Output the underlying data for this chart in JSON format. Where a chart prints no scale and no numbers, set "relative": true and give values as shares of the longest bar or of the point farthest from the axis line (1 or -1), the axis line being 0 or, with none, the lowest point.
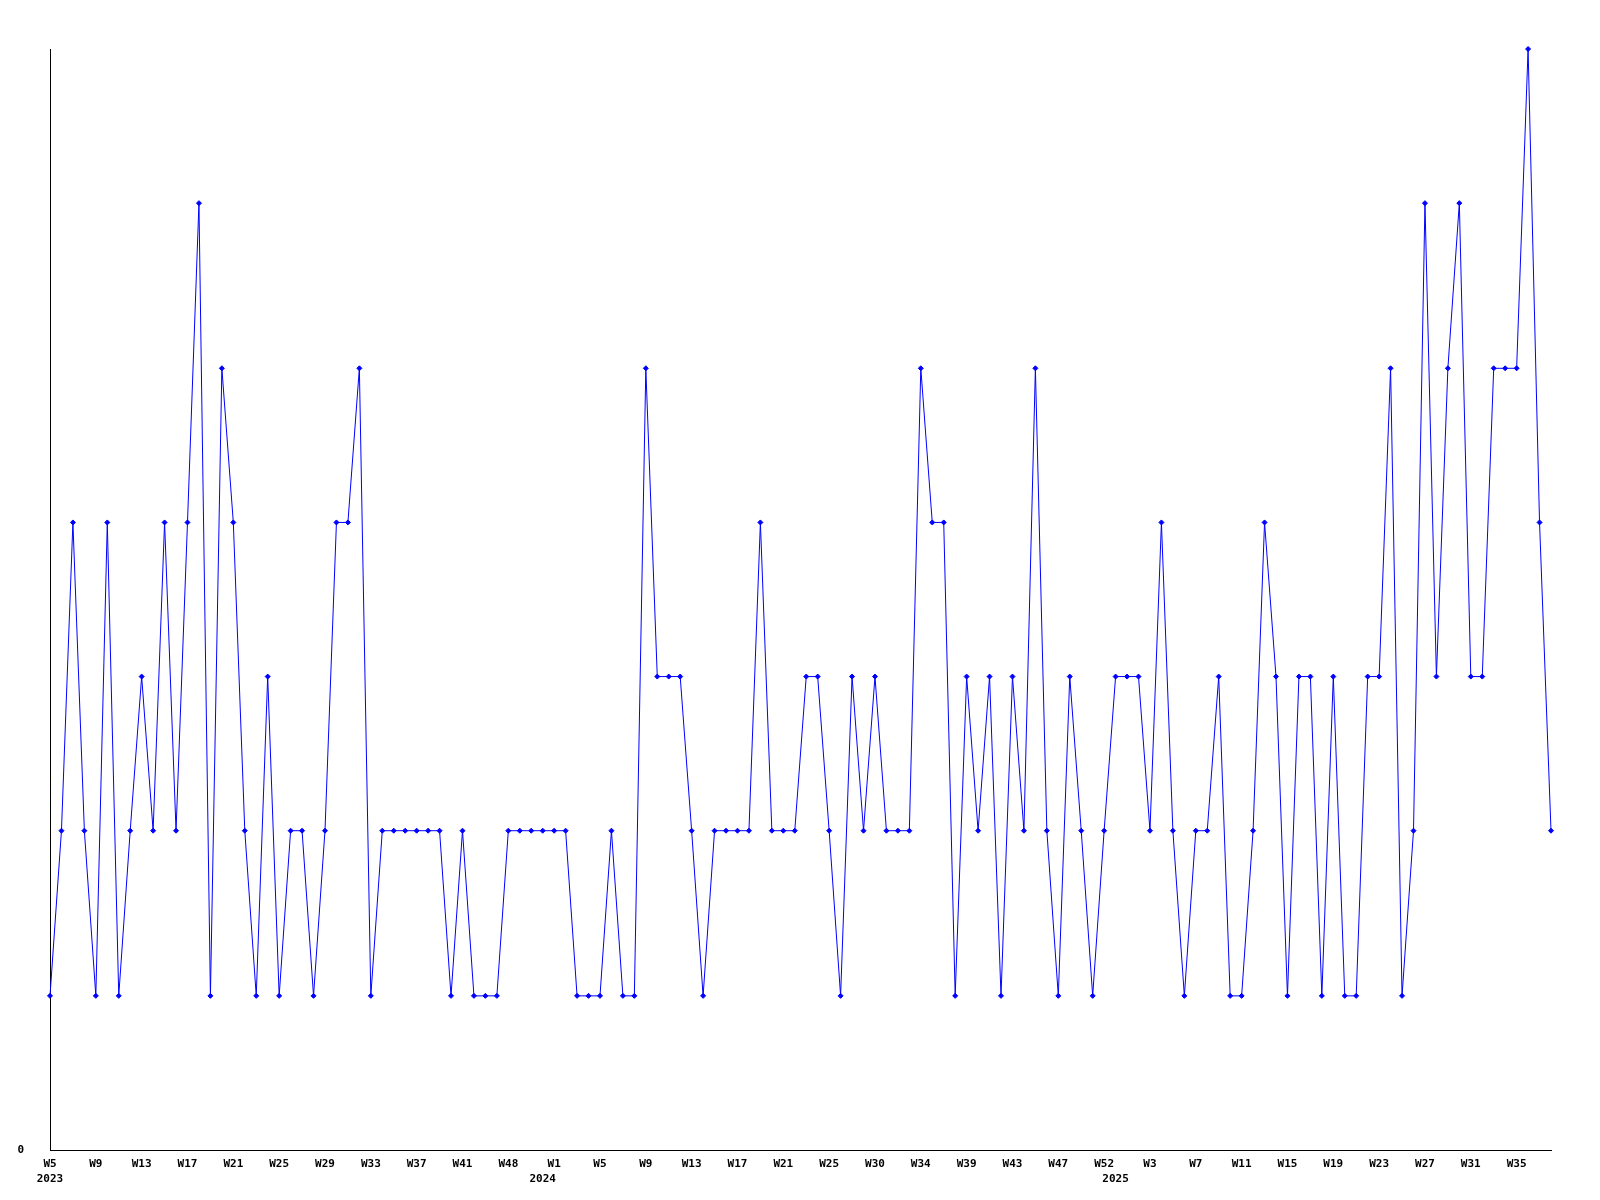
{
  "chart_data": {
    "type": "line",
    "relative": true,
    "color": "#0000ff",
    "marker": "diamond",
    "line_style": "solid",
    "annotations": [
      "0"
    ],
    "categories": [
      "W5\n2023",
      null,
      null,
      null,
      "W9",
      null,
      null,
      null,
      "W13",
      null,
      null,
      null,
      "W17",
      null,
      null,
      null,
      "W21",
      null,
      null,
      null,
      "W25",
      null,
      null,
      null,
      "W29",
      null,
      null,
      null,
      "W33",
      null,
      null,
      null,
      "W37",
      null,
      null,
      null,
      "W41",
      null,
      null,
      null,
      "W48",
      null,
      null,
      "\n2024",
      "W1",
      null,
      null,
      null,
      "W5",
      null,
      null,
      null,
      "W9",
      null,
      null,
      null,
      "W13",
      null,
      null,
      null,
      "W17",
      null,
      null,
      null,
      "W21",
      null,
      null,
      null,
      "W25",
      null,
      null,
      null,
      "W30",
      null,
      null,
      null,
      "W34",
      null,
      null,
      null,
      "W39",
      null,
      null,
      null,
      "W43",
      null,
      null,
      null,
      "W47",
      null,
      null,
      null,
      "W52",
      "\n2025",
      null,
      null,
      "W3",
      null,
      null,
      null,
      "W7",
      null,
      null,
      null,
      "W11",
      null,
      null,
      null,
      "W15",
      null,
      null,
      null,
      "W19",
      null,
      null,
      null,
      "W23",
      null,
      null,
      null,
      "W27",
      null,
      null,
      null,
      "W31",
      null,
      null,
      null,
      "W35",
      null,
      null,
      null
    ],
    "values": [
      0.14,
      0.29,
      0.57,
      0.29,
      0.14,
      0.57,
      0.14,
      0.29,
      0.43,
      0.29,
      0.57,
      0.29,
      0.57,
      0.86,
      0.14,
      0.71,
      0.57,
      0.29,
      0.14,
      0.43,
      0.14,
      0.29,
      0.29,
      0.14,
      0.29,
      0.57,
      0.57,
      0.71,
      0.14,
      0.29,
      0.29,
      0.29,
      0.29,
      0.29,
      0.29,
      0.14,
      0.29,
      0.14,
      0.14,
      0.14,
      0.29,
      0.29,
      0.29,
      0.29,
      0.29,
      0.29,
      0.14,
      0.14,
      0.14,
      0.29,
      0.14,
      0.14,
      0.71,
      0.43,
      0.43,
      0.43,
      0.29,
      0.14,
      0.29,
      0.29,
      0.29,
      0.29,
      0.57,
      0.29,
      0.29,
      0.29,
      0.43,
      0.43,
      0.29,
      0.14,
      0.43,
      0.29,
      0.43,
      0.29,
      0.29,
      0.29,
      0.71,
      0.57,
      0.57,
      0.14,
      0.43,
      0.29,
      0.43,
      0.14,
      0.43,
      0.29,
      0.71,
      0.29,
      0.14,
      0.43,
      0.29,
      0.14,
      0.29,
      0.43,
      0.43,
      0.43,
      0.29,
      0.57,
      0.29,
      0.14,
      0.29,
      0.29,
      0.43,
      0.14,
      0.14,
      0.29,
      0.57,
      0.43,
      0.14,
      0.43,
      0.43,
      0.14,
      0.43,
      0.14,
      0.14,
      0.43,
      0.43,
      0.71,
      0.14,
      0.29,
      0.86,
      0.43,
      0.71,
      0.86,
      0.43,
      0.43,
      0.71,
      0.71,
      0.71,
      1,
      0.57,
      0.29
    ]
  }
}
